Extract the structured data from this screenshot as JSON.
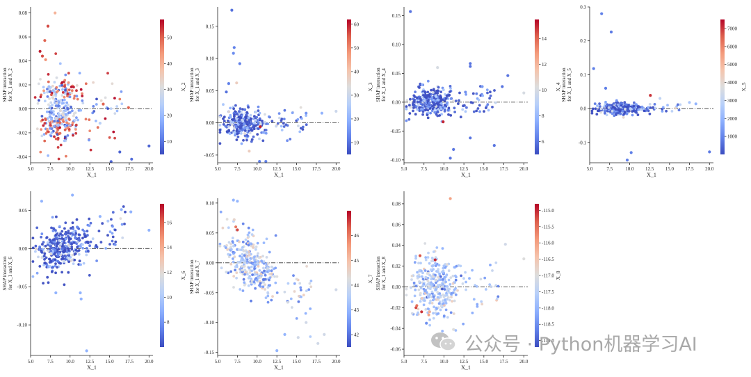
{
  "watermark": {
    "text": "公众号 · Python机器学习AI"
  },
  "chart_data": [
    {
      "type": "scatter",
      "xlabel": "X_1",
      "ylabel": [
        "SHAP interaction",
        "for X_1 and X_2"
      ],
      "colorbar_label": "X_2",
      "xlim": [
        5,
        20.5
      ],
      "ylim": [
        -0.045,
        0.085
      ],
      "yticks": [
        0.08,
        0.06,
        0.04,
        0.02,
        0.0,
        -0.02,
        -0.04
      ],
      "ytick_labels": [
        "0.08",
        "0.06",
        "0.04",
        "0.02",
        "0.00",
        "-0.02",
        "-0.04"
      ],
      "xticks": [
        5,
        7.5,
        10,
        12.5,
        15,
        17.5,
        20
      ],
      "xtick_labels": [
        "5.0",
        "7.5",
        "10.0",
        "12.5",
        "15.0",
        "17.5",
        "20.0"
      ],
      "cmin": 5,
      "cmax": 57,
      "cticks": [
        10,
        20,
        30,
        40,
        50
      ],
      "ctick_labels": [
        "10",
        "20",
        "30",
        "40",
        "50"
      ],
      "seed": 11,
      "cluster": {
        "n": 340,
        "xm": 8.6,
        "xs": 1.3,
        "ys": 0.013,
        "mix": "bimodal"
      },
      "points": [
        [
          8.1,
          0.08,
          40
        ],
        [
          7.2,
          0.069,
          52
        ],
        [
          6.8,
          0.057,
          50
        ],
        [
          6.2,
          0.048,
          55
        ],
        [
          6.5,
          0.044,
          52
        ],
        [
          6.9,
          0.041,
          45
        ],
        [
          15.2,
          -0.044,
          8
        ],
        [
          17.8,
          -0.042,
          9
        ],
        [
          20,
          -0.031,
          8
        ],
        [
          16.3,
          -0.036,
          8
        ],
        [
          17.4,
          0.001,
          50
        ],
        [
          14.2,
          0.004,
          50
        ],
        [
          13.8,
          -0.012,
          25
        ],
        [
          12.4,
          -0.026,
          15
        ]
      ]
    },
    {
      "type": "scatter",
      "xlabel": "X_1",
      "ylabel": [
        "SHAP interaction",
        "for X_1 and X_3"
      ],
      "colorbar_label": "X_3",
      "xlim": [
        5,
        20.5
      ],
      "ylim": [
        -0.062,
        0.18
      ],
      "yticks": [
        0.15,
        0.1,
        0.05,
        0.0,
        -0.05
      ],
      "ytick_labels": [
        "0.15",
        "0.10",
        "0.05",
        "0.00",
        "-0.05"
      ],
      "xticks": [
        5,
        7.5,
        10,
        12.5,
        15,
        17.5,
        20
      ],
      "xtick_labels": [
        "5.0",
        "7.5",
        "10.0",
        "12.5",
        "15.0",
        "17.5",
        "20.0"
      ],
      "cmin": 5,
      "cmax": 62,
      "cticks": [
        10,
        20,
        30,
        40,
        50,
        60
      ],
      "ctick_labels": [
        "10",
        "20",
        "30",
        "40",
        "50",
        "60"
      ],
      "seed": 23,
      "cluster": {
        "n": 340,
        "xm": 8.3,
        "xs": 1.3,
        "ys": 0.011,
        "mix": "low"
      },
      "points": [
        [
          6.8,
          0.175,
          10
        ],
        [
          7.1,
          0.117,
          12
        ],
        [
          7.0,
          0.108,
          14
        ],
        [
          6.4,
          0.061,
          12
        ],
        [
          7.4,
          0.062,
          38
        ],
        [
          7.8,
          0.092,
          12
        ],
        [
          6.1,
          0.048,
          10
        ],
        [
          10.3,
          -0.06,
          12
        ],
        [
          11.1,
          -0.06,
          12
        ],
        [
          20,
          0.018,
          30
        ],
        [
          18.2,
          0.015,
          20
        ],
        [
          16.2,
          0.015,
          15
        ],
        [
          9.0,
          -0.044,
          38
        ],
        [
          10.4,
          -0.006,
          60
        ]
      ]
    },
    {
      "type": "scatter",
      "xlabel": "X_1",
      "ylabel": [
        "SHAP interaction",
        "for X_1 and X_4"
      ],
      "colorbar_label": "X_4",
      "xlim": [
        5,
        20.5
      ],
      "ylim": [
        -0.105,
        0.165
      ],
      "yticks": [
        0.15,
        0.1,
        0.05,
        0.0,
        -0.05,
        -0.1
      ],
      "ytick_labels": [
        "0.15",
        "0.10",
        "0.05",
        "0.00",
        "-0.05",
        "-0.10"
      ],
      "xticks": [
        5,
        7.5,
        10,
        12.5,
        15,
        17.5,
        20
      ],
      "xtick_labels": [
        "5.0",
        "7.5",
        "10.0",
        "12.5",
        "15.0",
        "17.5",
        "20.0"
      ],
      "cmin": 5,
      "cmax": 15.5,
      "cticks": [
        6,
        8,
        10,
        12,
        14
      ],
      "ctick_labels": [
        "6",
        "8",
        "10",
        "12",
        "14"
      ],
      "seed": 37,
      "cluster": {
        "n": 340,
        "xm": 8.5,
        "xs": 1.3,
        "ys": 0.012,
        "mix": "low"
      },
      "points": [
        [
          5.8,
          0.157,
          6
        ],
        [
          9.2,
          0.06,
          10
        ],
        [
          13.3,
          0.067,
          6
        ],
        [
          13.3,
          0.062,
          6
        ],
        [
          17.3,
          0.027,
          6
        ],
        [
          18,
          0.046,
          6
        ],
        [
          20,
          0.016,
          10
        ],
        [
          10.8,
          -0.097,
          6
        ],
        [
          16.3,
          -0.075,
          6
        ],
        [
          13.3,
          -0.062,
          6
        ],
        [
          9.9,
          -0.034,
          15
        ],
        [
          14.8,
          0.027,
          7
        ],
        [
          11.2,
          -0.082,
          6
        ]
      ]
    },
    {
      "type": "scatter",
      "xlabel": "X_1",
      "ylabel": [
        "SHAP interaction",
        "for X_1 and X_5"
      ],
      "colorbar_label": "X_5",
      "xlim": [
        5,
        20.5
      ],
      "ylim": [
        -0.16,
        0.3
      ],
      "yticks": [
        0.3,
        0.2,
        0.1,
        0.0,
        -0.1
      ],
      "ytick_labels": [
        "0.3",
        "0.2",
        "0.1",
        "0.0",
        "-0.1"
      ],
      "xticks": [
        5,
        7.5,
        10,
        12.5,
        15,
        17.5,
        20
      ],
      "xtick_labels": [
        "5.0",
        "7.5",
        "10.0",
        "12.5",
        "15.0",
        "17.5",
        "20.0"
      ],
      "cmin": 0,
      "cmax": 7500,
      "cticks": [
        1000,
        2000,
        3000,
        4000,
        5000,
        6000,
        7000
      ],
      "ctick_labels": [
        "1000",
        "2000",
        "3000",
        "4000",
        "5000",
        "6000",
        "7000"
      ],
      "seed": 41,
      "cluster": {
        "n": 320,
        "xm": 8.6,
        "xs": 1.4,
        "ys": 0.008,
        "mix": "low"
      },
      "points": [
        [
          6.5,
          0.28,
          900
        ],
        [
          7.7,
          0.226,
          800
        ],
        [
          5.5,
          0.118,
          900
        ],
        [
          9.7,
          -0.152,
          900
        ],
        [
          10.2,
          -0.13,
          900
        ],
        [
          20,
          -0.128,
          800
        ],
        [
          12.6,
          0.039,
          7000
        ],
        [
          7.0,
          0.06,
          900
        ],
        [
          13.8,
          0.03,
          3000
        ],
        [
          17.5,
          0.018,
          2500
        ],
        [
          18.3,
          0.014,
          2000
        ]
      ]
    },
    {
      "type": "scatter",
      "xlabel": "X_1",
      "ylabel": [
        "SHAP interaction",
        "for X_1 and X_6"
      ],
      "colorbar_label": "X_6",
      "xlim": [
        5,
        20.5
      ],
      "ylim": [
        -0.14,
        0.075
      ],
      "yticks": [
        0.05,
        0.0,
        -0.05,
        -0.1
      ],
      "ytick_labels": [
        "0.05",
        "0.00",
        "-0.05",
        "-0.10"
      ],
      "xticks": [
        5,
        7.5,
        10,
        12.5,
        15,
        17.5,
        20
      ],
      "xtick_labels": [
        "5.0",
        "7.5",
        "10.0",
        "12.5",
        "15.0",
        "17.5",
        "20.0"
      ],
      "cmin": 6,
      "cmax": 17.5,
      "cticks": [
        8,
        10,
        12,
        14,
        16
      ],
      "ctick_labels": [
        "8",
        "10",
        "12",
        "14",
        "16"
      ],
      "seed": 53,
      "cluster": {
        "n": 380,
        "xm": 9.0,
        "xs": 1.6,
        "ys": 0.016,
        "mix": "low",
        "trend": 0.006
      },
      "points": [
        [
          12.1,
          -0.134,
          9
        ],
        [
          11.4,
          -0.066,
          9
        ],
        [
          8.2,
          -0.058,
          9
        ],
        [
          6.4,
          0.062,
          9
        ],
        [
          10.3,
          0.07,
          9
        ],
        [
          20,
          0.024,
          9
        ],
        [
          17.7,
          0.048,
          9
        ],
        [
          16.5,
          0.051,
          9
        ],
        [
          14.8,
          0.036,
          10
        ],
        [
          13.8,
          0.042,
          9
        ],
        [
          11.3,
          -0.058,
          9
        ]
      ]
    },
    {
      "type": "scatter",
      "xlabel": "X_1",
      "ylabel": [
        "SHAP interaction",
        "for X_1 and X_7"
      ],
      "colorbar_label": "X_7",
      "xlim": [
        5,
        20.5
      ],
      "ylim": [
        -0.155,
        0.108
      ],
      "yticks": [
        0.1,
        0.05,
        0.0,
        -0.05,
        -0.1,
        -0.15
      ],
      "ytick_labels": [
        "0.10",
        "0.05",
        "0.00",
        "-0.05",
        "-0.10",
        "-0.15"
      ],
      "xticks": [
        5,
        7.5,
        10,
        12.5,
        15,
        17.5,
        20
      ],
      "xtick_labels": [
        "5.0",
        "7.5",
        "10.0",
        "12.5",
        "15.0",
        "17.5",
        "20.0"
      ],
      "cmin": 41.5,
      "cmax": 47,
      "cticks": [
        42,
        43,
        44,
        45,
        46
      ],
      "ctick_labels": [
        "42",
        "43",
        "44",
        "45",
        "46"
      ],
      "seed": 67,
      "cluster": {
        "n": 340,
        "xm": 8.9,
        "xs": 1.5,
        "ys": 0.022,
        "mix": "mid",
        "trend": -0.017
      },
      "points": [
        [
          7.0,
          0.105,
          43
        ],
        [
          7.5,
          0.103,
          43
        ],
        [
          7.3,
          0.06,
          46
        ],
        [
          7.5,
          0.055,
          46.5
        ],
        [
          7.1,
          0.072,
          44.5
        ],
        [
          12.5,
          -0.147,
          43
        ],
        [
          13.5,
          -0.12,
          43
        ],
        [
          15.2,
          -0.125,
          44
        ],
        [
          18.5,
          -0.12,
          44
        ],
        [
          17.7,
          -0.135,
          44
        ],
        [
          16.2,
          -0.1,
          44
        ],
        [
          20,
          -0.045,
          44
        ]
      ]
    },
    {
      "type": "scatter",
      "xlabel": "X_1",
      "ylabel": [
        "SHAP interaction",
        "for X_1 and X_8"
      ],
      "colorbar_label": "X_8",
      "xlim": [
        5,
        20.5
      ],
      "ylim": [
        -0.066,
        0.092
      ],
      "yticks": [
        0.08,
        0.06,
        0.04,
        0.02,
        0.0,
        -0.02,
        -0.04,
        -0.06
      ],
      "ytick_labels": [
        "0.08",
        "0.06",
        "0.04",
        "0.02",
        "0.00",
        "-0.02",
        "-0.04",
        "-0.06"
      ],
      "xticks": [
        5,
        7.5,
        10,
        12.5,
        15,
        17.5,
        20
      ],
      "xtick_labels": [
        "5.0",
        "7.5",
        "10.0",
        "12.5",
        "15.0",
        "17.5",
        "20.0"
      ],
      "cmin": -119.2,
      "cmax": -114.8,
      "cticks": [
        -119,
        -118.5,
        -118,
        -117.5,
        -117,
        -116.5,
        -116,
        -115.5,
        -115
      ],
      "ctick_labels": [
        "-119.0",
        "-118.5",
        "-118.0",
        "-117.5",
        "-117.0",
        "-116.5",
        "-116.0",
        "-115.5",
        "-115.0"
      ],
      "seed": 79,
      "cluster": {
        "n": 340,
        "xm": 8.8,
        "xs": 1.4,
        "ys": 0.014,
        "mix": "center"
      },
      "points": [
        [
          10.8,
          0.085,
          -116
        ],
        [
          7.0,
          0.03,
          -115.3
        ],
        [
          6.5,
          -0.02,
          -115.2
        ],
        [
          6.6,
          -0.018,
          -115.5
        ],
        [
          7.2,
          -0.024,
          -115.1
        ],
        [
          8.1,
          -0.027,
          -116
        ],
        [
          8.2,
          -0.024,
          -116.2
        ],
        [
          8.9,
          0.026,
          -115
        ],
        [
          7.8,
          -0.035,
          -118.5
        ],
        [
          11.2,
          -0.041,
          -117
        ],
        [
          17.7,
          0.041,
          -117.2
        ],
        [
          20,
          0.027,
          -117
        ]
      ]
    }
  ]
}
